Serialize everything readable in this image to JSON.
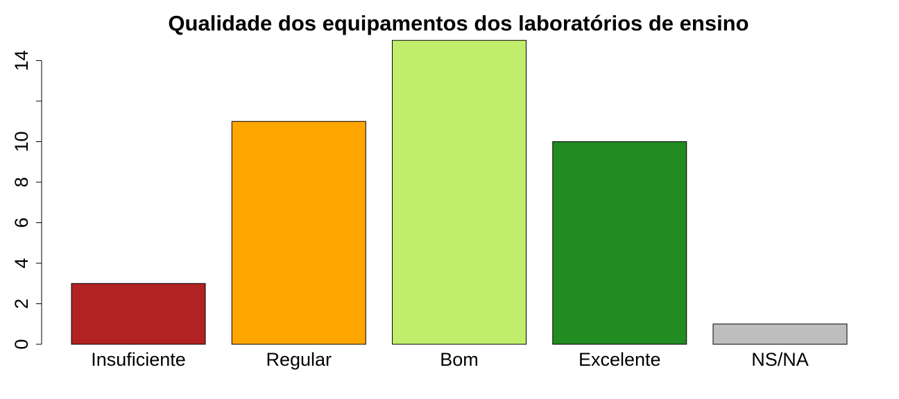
{
  "chart_data": {
    "type": "bar",
    "title": "Qualidade dos equipamentos dos laboratórios de ensino",
    "xlabel": "",
    "ylabel": "",
    "categories": [
      "Insuficiente",
      "Regular",
      "Bom",
      "Excelente",
      "NS/NA"
    ],
    "values": [
      3,
      11,
      15,
      10,
      1
    ],
    "colors": [
      "#b22222",
      "#ffa500",
      "#c0ed6b",
      "#228b22",
      "#bebebe"
    ],
    "ylim": [
      0,
      15
    ],
    "y_ticks": [
      0,
      2,
      4,
      6,
      8,
      10,
      12,
      14
    ],
    "y_tick_labels": [
      "0",
      "2",
      "4",
      "6",
      "8",
      "10",
      "",
      "14"
    ],
    "grid": false,
    "legend": "none"
  }
}
